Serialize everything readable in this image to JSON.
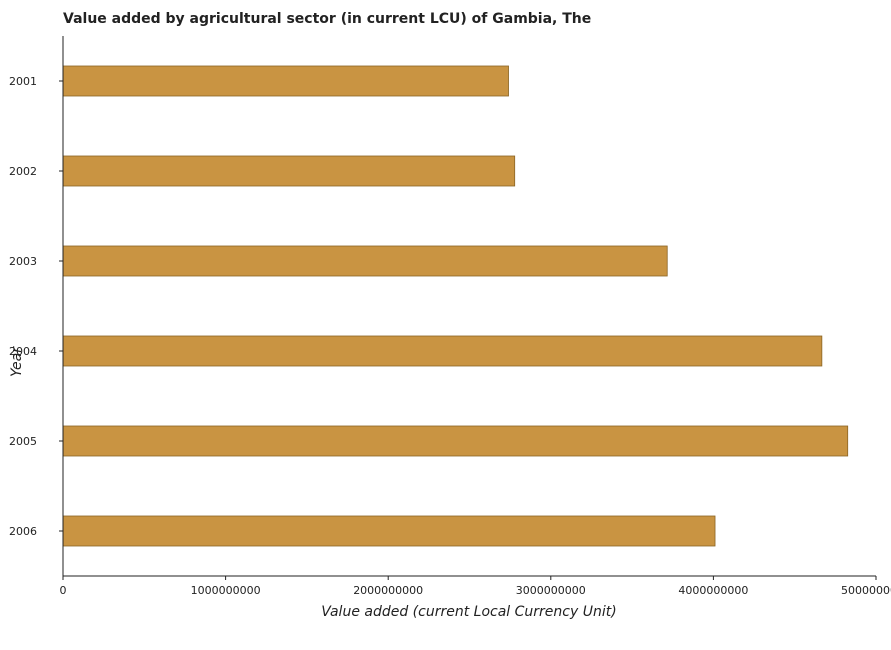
{
  "chart_data": {
    "type": "bar",
    "orientation": "horizontal",
    "title": "Value added by agricultural sector (in current LCU) of Gambia, The",
    "xlabel": "Value added (current Local Currency Unit)",
    "ylabel": "Year",
    "categories": [
      "2001",
      "2002",
      "2003",
      "2004",
      "2005",
      "2006"
    ],
    "values": [
      2740000000,
      2778000000,
      3716000000,
      4667000000,
      4826000000,
      4010000000
    ],
    "xlim": [
      0,
      5000000000
    ],
    "xticks": [
      0,
      1000000000,
      2000000000,
      3000000000,
      4000000000,
      5000000000
    ],
    "xtick_labels": [
      "0",
      "1000000000",
      "2000000000",
      "3000000000",
      "4000000000",
      "5000000000"
    ],
    "grid": false,
    "bar_color": "#c99442",
    "bar_edge_color": "#8a6424",
    "axis_color": "#222222"
  }
}
